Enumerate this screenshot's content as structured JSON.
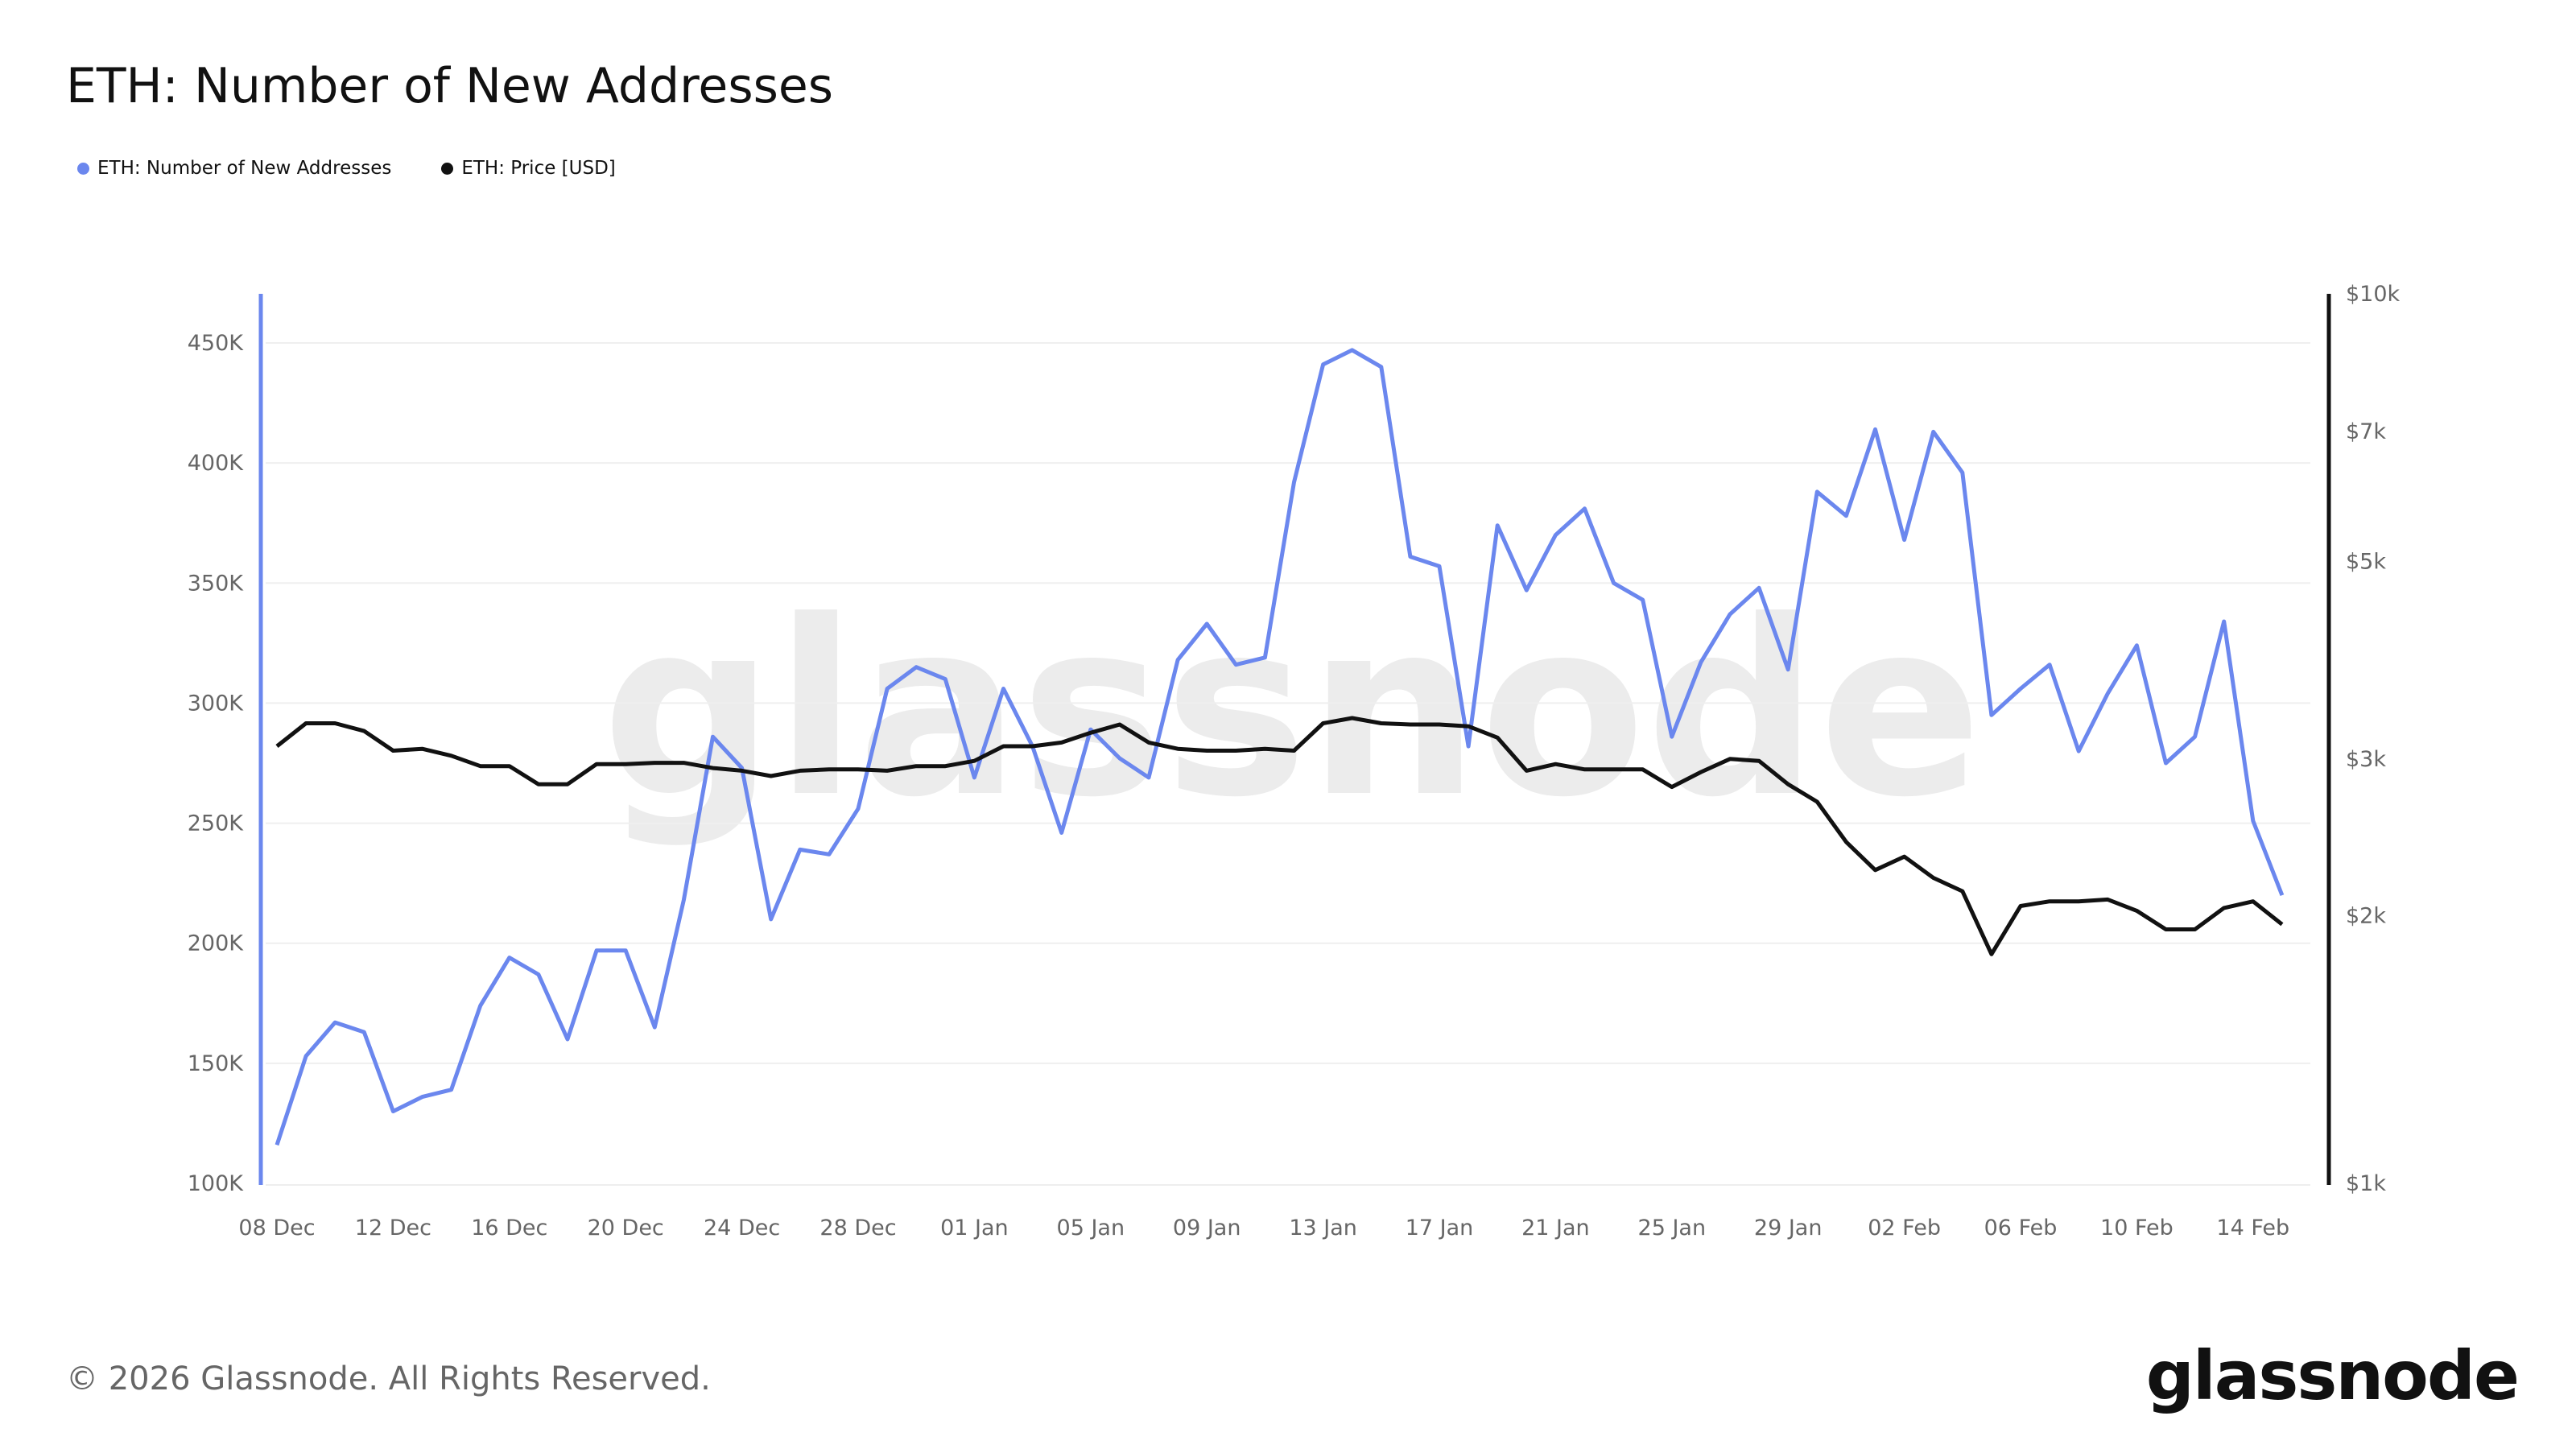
{
  "title": "ETH: Number of New Addresses",
  "footer": "© 2026 Glassnode. All Rights Reserved.",
  "logo": "glassnode",
  "watermark": "glassnode",
  "colors": {
    "addresses": "#6b87ee",
    "price": "#111111",
    "grid": "#efefef"
  },
  "chart_data": {
    "type": "line",
    "title": "ETH: Number of New Addresses",
    "x_start": "2025-12-08",
    "x_end": "2026-02-15",
    "x_tick_labels": [
      "08 Dec",
      "12 Dec",
      "16 Dec",
      "20 Dec",
      "24 Dec",
      "28 Dec",
      "01 Jan",
      "05 Jan",
      "09 Jan",
      "13 Jan",
      "17 Jan",
      "21 Jan",
      "25 Jan",
      "29 Jan",
      "02 Feb",
      "06 Feb",
      "10 Feb",
      "14 Feb"
    ],
    "y_left": {
      "range": [
        100000,
        450000
      ],
      "ticks": [
        "100K",
        "150K",
        "200K",
        "250K",
        "300K",
        "350K",
        "400K",
        "450K"
      ]
    },
    "y_right": {
      "scale": "log",
      "range": [
        1000,
        10000
      ],
      "ticks": [
        {
          "v": 1000,
          "label": "$1k"
        },
        {
          "v": 2000,
          "label": "$2k"
        },
        {
          "v": 3000,
          "label": "$3k"
        },
        {
          "v": 5000,
          "label": "$5k"
        },
        {
          "v": 7000,
          "label": "$7k"
        },
        {
          "v": 10000,
          "label": "$10k"
        }
      ]
    },
    "grid": true,
    "legend_position": "top-left",
    "series": [
      {
        "name": "ETH: Number of New Addresses",
        "axis": "left",
        "values": [
          116000,
          153000,
          167000,
          163000,
          130000,
          136000,
          139000,
          174000,
          194000,
          187000,
          160000,
          197000,
          197000,
          165000,
          218000,
          286000,
          273000,
          210000,
          239000,
          237000,
          256000,
          306000,
          315000,
          310000,
          269000,
          306000,
          282000,
          246000,
          289000,
          277000,
          269000,
          318000,
          333000,
          316000,
          319000,
          392000,
          441000,
          447000,
          440000,
          361000,
          357000,
          282000,
          374000,
          347000,
          370000,
          381000,
          350000,
          343000,
          286000,
          317000,
          337000,
          348000,
          314000,
          388000,
          378000,
          414000,
          368000,
          413000,
          396000,
          295000,
          306000,
          316000,
          280000,
          304000,
          324000,
          275000,
          286000,
          334000,
          251000,
          220000
        ]
      },
      {
        "name": "ETH: Price [USD]",
        "axis": "right",
        "values": [
          3100,
          3290,
          3290,
          3225,
          3065,
          3080,
          3025,
          2945,
          2945,
          2810,
          2810,
          2960,
          2960,
          2970,
          2970,
          2930,
          2910,
          2870,
          2910,
          2920,
          2920,
          2910,
          2945,
          2945,
          2985,
          3100,
          3100,
          3130,
          3210,
          3280,
          3130,
          3080,
          3065,
          3065,
          3080,
          3065,
          3290,
          3335,
          3290,
          3280,
          3280,
          3265,
          3170,
          2910,
          2960,
          2920,
          2920,
          2920,
          2790,
          2900,
          3000,
          2985,
          2810,
          2685,
          2420,
          2250,
          2330,
          2205,
          2130,
          1810,
          2050,
          2075,
          2075,
          2085,
          2025,
          1930,
          1930,
          2040,
          2075,
          1955
        ]
      }
    ]
  }
}
